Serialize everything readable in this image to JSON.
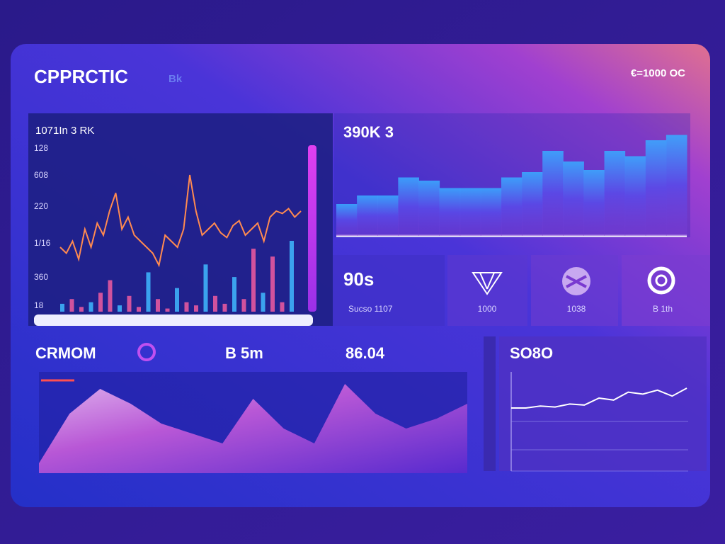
{
  "header": {
    "title": "CPPRCTIC",
    "badge": "Bk",
    "status": "€=1000 OC"
  },
  "price_panel": {
    "title": "1071In 3 RK",
    "axis_labels": [
      "128",
      "608",
      "220",
      "1/16",
      "360",
      "18"
    ],
    "line": [
      30,
      25,
      35,
      20,
      45,
      30,
      50,
      40,
      60,
      75,
      45,
      55,
      40,
      35,
      30,
      25,
      15,
      40,
      35,
      30,
      45,
      90,
      60,
      40,
      45,
      50,
      42,
      38,
      48,
      52,
      40,
      45,
      50,
      35,
      55,
      60,
      58,
      62,
      55,
      60
    ],
    "volume": [
      5,
      8,
      3,
      6,
      12,
      20,
      4,
      10,
      3,
      25,
      8,
      2,
      15,
      6,
      4,
      30,
      10,
      5,
      22,
      8,
      40,
      12,
      35,
      6,
      45
    ]
  },
  "volume_panel": {
    "title": "390K 3",
    "steps": [
      30,
      38,
      38,
      55,
      52,
      45,
      45,
      45,
      55,
      60,
      80,
      70,
      62,
      80,
      75,
      90,
      95
    ]
  },
  "cards": [
    {
      "value": "90s",
      "label": "Sucso 1107"
    },
    {
      "label": "1000"
    },
    {
      "label": "1038"
    },
    {
      "label": "B 1th"
    }
  ],
  "bottom": {
    "title": "CRMOM",
    "ticker": "B 5m",
    "price": "86.04",
    "area": [
      10,
      60,
      85,
      70,
      50,
      40,
      30,
      75,
      45,
      30,
      90,
      60,
      45,
      55,
      70
    ]
  },
  "side_panel": {
    "title": "SO8O",
    "line": [
      10,
      10,
      12,
      11,
      14,
      13,
      20,
      18,
      26,
      24,
      28,
      22,
      30
    ]
  }
}
